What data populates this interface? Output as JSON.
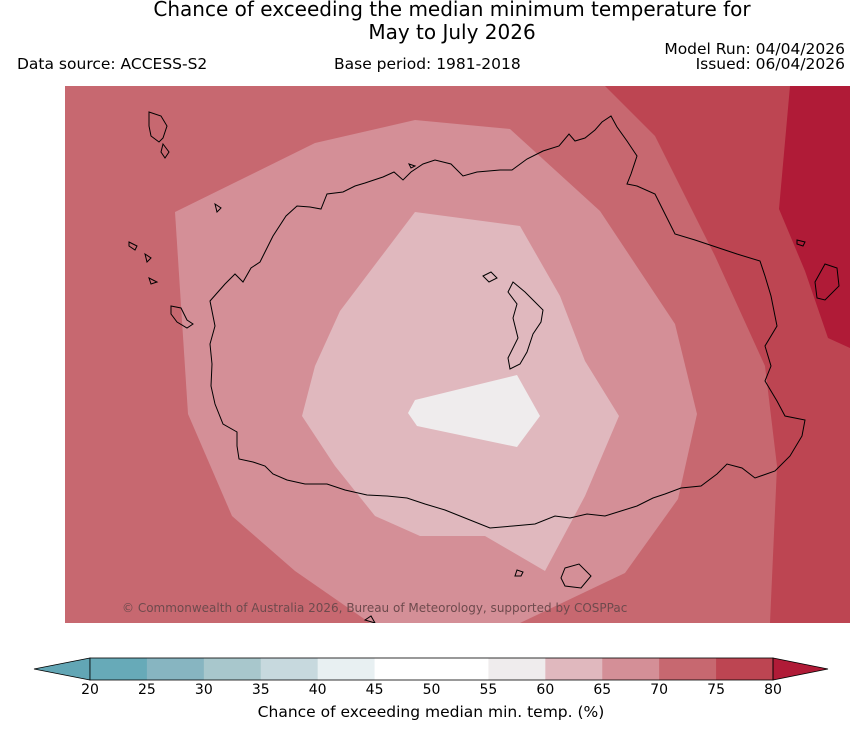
{
  "title": {
    "line1": "Chance of exceeding the median minimum temperature for",
    "line2": "May to July 2026"
  },
  "meta": {
    "data_source": "Data source: ACCESS-S2",
    "base_period": "Base period: 1981-2018",
    "model_run": "Model Run: 04/04/2026",
    "issued": "Issued: 06/04/2026"
  },
  "map": {
    "copyright": "© Commonwealth of Australia 2026, Bureau of Meteorology, supported by COSPPac",
    "colors": {
      "band_60_65": "#e0b8be",
      "band_65_70": "#d48f97",
      "band_70_75": "#c76870",
      "band_75_80": "#bd4552",
      "band_above_80": "#b01b37",
      "band_55_60": "#efeced",
      "coastline": "#000000"
    }
  },
  "legend": {
    "label": "Chance of exceeding median min. temp. (%)",
    "ticks": [
      "20",
      "25",
      "30",
      "35",
      "40",
      "45",
      "50",
      "55",
      "60",
      "65",
      "70",
      "75",
      "80"
    ],
    "colors": [
      "#67aab8",
      "#87b5c1",
      "#a8c7cc",
      "#c7d9de",
      "#e8f0f2",
      "#ffffff",
      "#ffffff",
      "#efeced",
      "#e0b8be",
      "#d48f97",
      "#c76870",
      "#bd4552"
    ],
    "under_color": "#62a6b5",
    "over_color": "#b01b37"
  }
}
